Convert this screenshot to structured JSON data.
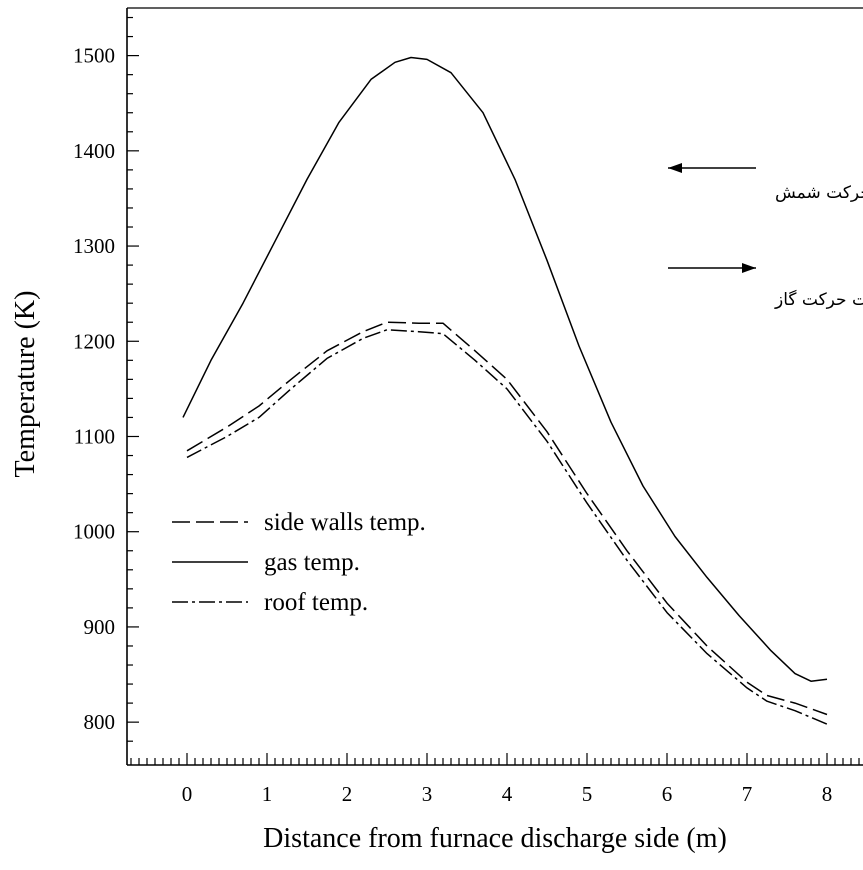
{
  "chart_data": {
    "type": "line",
    "title": "",
    "xlabel": "Distance from furnace discharge side (m)",
    "ylabel": "Temperature (K)",
    "xlim": [
      -0.75,
      8.45
    ],
    "ylim": [
      755,
      1550
    ],
    "x_ticks": [
      0,
      1,
      2,
      3,
      4,
      5,
      6,
      7,
      8
    ],
    "y_ticks": [
      800,
      900,
      1000,
      1100,
      1200,
      1300,
      1400,
      1500
    ],
    "grid": false,
    "legend_position": "left-middle",
    "series": [
      {
        "name": "side walls temp.",
        "style": "dashed",
        "points": [
          [
            0,
            1085
          ],
          [
            0.5,
            1110
          ],
          [
            0.9,
            1132
          ],
          [
            1.3,
            1160
          ],
          [
            1.75,
            1190
          ],
          [
            2.2,
            1210
          ],
          [
            2.5,
            1220
          ],
          [
            2.9,
            1219
          ],
          [
            3.2,
            1219
          ],
          [
            3.6,
            1190
          ],
          [
            4.0,
            1160
          ],
          [
            4.5,
            1105
          ],
          [
            5.0,
            1040
          ],
          [
            5.5,
            980
          ],
          [
            6.0,
            925
          ],
          [
            6.5,
            880
          ],
          [
            7.0,
            842
          ],
          [
            7.25,
            828
          ],
          [
            7.6,
            820
          ],
          [
            8.0,
            808
          ]
        ]
      },
      {
        "name": "gas temp.",
        "style": "solid",
        "points": [
          [
            -0.05,
            1120
          ],
          [
            0.3,
            1180
          ],
          [
            0.7,
            1240
          ],
          [
            1.1,
            1305
          ],
          [
            1.5,
            1370
          ],
          [
            1.9,
            1430
          ],
          [
            2.3,
            1475
          ],
          [
            2.6,
            1493
          ],
          [
            2.8,
            1498
          ],
          [
            3.0,
            1496
          ],
          [
            3.3,
            1482
          ],
          [
            3.7,
            1440
          ],
          [
            4.1,
            1370
          ],
          [
            4.5,
            1285
          ],
          [
            4.9,
            1195
          ],
          [
            5.3,
            1115
          ],
          [
            5.7,
            1048
          ],
          [
            6.1,
            995
          ],
          [
            6.5,
            952
          ],
          [
            6.9,
            912
          ],
          [
            7.3,
            875
          ],
          [
            7.6,
            851
          ],
          [
            7.8,
            843
          ],
          [
            8.0,
            845
          ]
        ]
      },
      {
        "name": "roof temp.",
        "style": "dash-dot",
        "points": [
          [
            0,
            1078
          ],
          [
            0.5,
            1100
          ],
          [
            0.9,
            1120
          ],
          [
            1.3,
            1150
          ],
          [
            1.75,
            1182
          ],
          [
            2.2,
            1203
          ],
          [
            2.5,
            1212
          ],
          [
            2.9,
            1210
          ],
          [
            3.2,
            1208
          ],
          [
            3.6,
            1180
          ],
          [
            4.0,
            1150
          ],
          [
            4.5,
            1095
          ],
          [
            5.0,
            1030
          ],
          [
            5.5,
            970
          ],
          [
            6.0,
            915
          ],
          [
            6.5,
            872
          ],
          [
            7.0,
            836
          ],
          [
            7.25,
            822
          ],
          [
            7.6,
            812
          ],
          [
            8.0,
            798
          ]
        ]
      }
    ],
    "annotations": [
      {
        "text": "جهت حرکت شمش",
        "arrow": "left"
      },
      {
        "text": "جهت حرکت گاز",
        "arrow": "right"
      }
    ]
  }
}
